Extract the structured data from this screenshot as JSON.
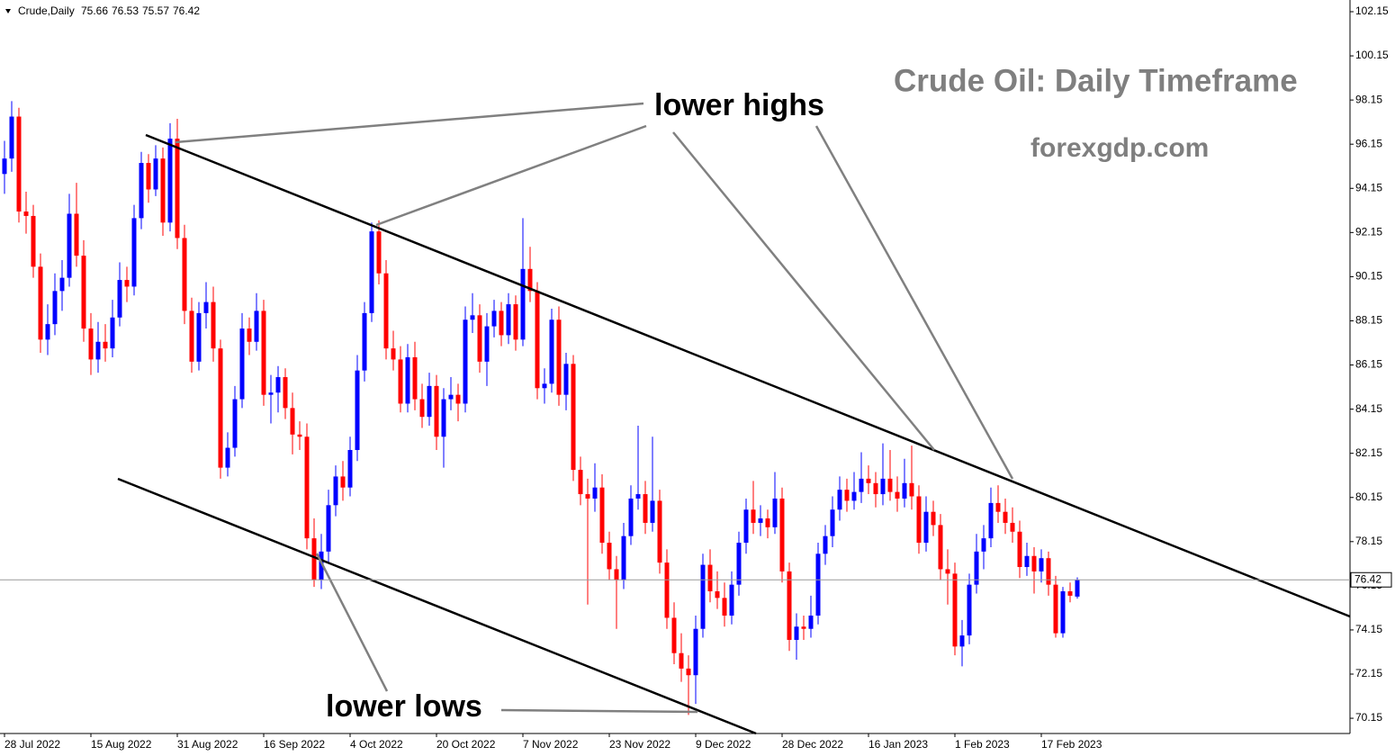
{
  "chart_data": {
    "type": "candlestick",
    "symbol": "Crude,Daily",
    "title": "Crude Oil: Daily Timeframe",
    "subtitle": "forexgdp.com",
    "annotations": [
      "lower highs",
      "lower lows"
    ],
    "up_color": "#0000ff",
    "down_color": "#ff0000",
    "ylim": [
      69.46,
      102.68
    ],
    "yticks": [
      70.15,
      72.15,
      74.15,
      76.15,
      78.15,
      80.15,
      82.15,
      84.15,
      86.15,
      88.15,
      90.15,
      92.15,
      94.15,
      96.15,
      98.15,
      100.15,
      102.15
    ],
    "categories": [
      "28 Jul 2022",
      null,
      null,
      null,
      null,
      null,
      null,
      null,
      null,
      null,
      null,
      null,
      "15 Aug 2022",
      null,
      null,
      null,
      null,
      null,
      null,
      null,
      null,
      null,
      null,
      null,
      "31 Aug 2022",
      null,
      null,
      null,
      null,
      null,
      null,
      null,
      null,
      null,
      null,
      null,
      "16 Sep 2022",
      null,
      null,
      null,
      null,
      null,
      null,
      null,
      null,
      null,
      null,
      null,
      "4 Oct 2022",
      null,
      null,
      null,
      null,
      null,
      null,
      null,
      null,
      null,
      null,
      null,
      "20 Oct 2022",
      null,
      null,
      null,
      null,
      null,
      null,
      null,
      null,
      null,
      null,
      null,
      "7 Nov 2022",
      null,
      null,
      null,
      null,
      null,
      null,
      null,
      null,
      null,
      null,
      null,
      "23 Nov 2022",
      null,
      null,
      null,
      null,
      null,
      null,
      null,
      null,
      null,
      null,
      null,
      "9 Dec 2022",
      null,
      null,
      null,
      null,
      null,
      null,
      null,
      null,
      null,
      null,
      null,
      "28 Dec 2022",
      null,
      null,
      null,
      null,
      null,
      null,
      null,
      null,
      null,
      null,
      null,
      "16 Jan 2023",
      null,
      null,
      null,
      null,
      null,
      null,
      null,
      null,
      null,
      null,
      null,
      "1 Feb 2023",
      null,
      null,
      null,
      null,
      null,
      null,
      null,
      null,
      null,
      null,
      null,
      "17 Feb 2023",
      null,
      null,
      null,
      null,
      null
    ],
    "ohlc": [
      [
        94.8,
        96.3,
        93.9,
        95.5
      ],
      [
        95.5,
        98.1,
        94.9,
        97.4
      ],
      [
        97.4,
        97.8,
        92.6,
        93.1
      ],
      [
        93.1,
        94.0,
        92.1,
        92.9
      ],
      [
        92.9,
        93.4,
        90.1,
        90.6
      ],
      [
        90.6,
        91.2,
        86.7,
        87.3
      ],
      [
        87.3,
        88.9,
        86.6,
        88.0
      ],
      [
        88.0,
        90.3,
        87.5,
        89.5
      ],
      [
        89.5,
        90.9,
        88.6,
        90.1
      ],
      [
        90.1,
        93.9,
        89.7,
        93.0
      ],
      [
        93.0,
        94.4,
        90.6,
        91.1
      ],
      [
        91.1,
        91.8,
        87.2,
        87.8
      ],
      [
        87.8,
        88.5,
        85.7,
        86.4
      ],
      [
        86.4,
        88.1,
        85.8,
        87.2
      ],
      [
        87.2,
        88.0,
        86.3,
        86.9
      ],
      [
        86.9,
        89.1,
        86.5,
        88.3
      ],
      [
        88.3,
        90.8,
        87.9,
        90.0
      ],
      [
        90.0,
        90.6,
        89.0,
        89.7
      ],
      [
        89.7,
        93.4,
        89.3,
        92.8
      ],
      [
        92.8,
        95.8,
        92.3,
        95.3
      ],
      [
        95.3,
        95.7,
        93.5,
        94.1
      ],
      [
        94.1,
        96.1,
        93.8,
        95.5
      ],
      [
        95.5,
        96.0,
        92.0,
        92.6
      ],
      [
        92.6,
        97.1,
        92.2,
        96.4
      ],
      [
        96.4,
        97.3,
        91.4,
        91.9
      ],
      [
        91.9,
        92.5,
        88.0,
        88.6
      ],
      [
        88.6,
        89.2,
        85.8,
        86.3
      ],
      [
        86.3,
        89.0,
        85.9,
        88.5
      ],
      [
        88.5,
        89.9,
        87.8,
        89.0
      ],
      [
        89.0,
        89.7,
        86.3,
        86.9
      ],
      [
        86.9,
        87.3,
        81.0,
        81.5
      ],
      [
        81.5,
        83.1,
        81.1,
        82.4
      ],
      [
        82.4,
        85.2,
        82.0,
        84.6
      ],
      [
        84.6,
        88.5,
        84.2,
        87.8
      ],
      [
        87.8,
        88.3,
        86.6,
        87.2
      ],
      [
        87.2,
        89.4,
        86.8,
        88.6
      ],
      [
        88.6,
        89.1,
        84.3,
        84.8
      ],
      [
        84.8,
        85.7,
        83.5,
        84.9
      ],
      [
        84.9,
        86.1,
        84.0,
        85.6
      ],
      [
        85.6,
        86.0,
        83.7,
        84.2
      ],
      [
        84.2,
        84.9,
        82.1,
        83.0
      ],
      [
        83.0,
        83.6,
        82.3,
        82.9
      ],
      [
        82.9,
        83.5,
        77.8,
        78.3
      ],
      [
        78.3,
        79.2,
        76.1,
        76.4
      ],
      [
        76.4,
        78.5,
        76.0,
        77.7
      ],
      [
        77.7,
        80.5,
        77.2,
        79.8
      ],
      [
        79.8,
        81.6,
        79.3,
        81.1
      ],
      [
        81.1,
        81.8,
        80.0,
        80.6
      ],
      [
        80.6,
        82.9,
        80.2,
        82.3
      ],
      [
        82.3,
        86.6,
        81.8,
        85.9
      ],
      [
        85.9,
        89.0,
        85.4,
        88.5
      ],
      [
        88.5,
        92.6,
        88.1,
        92.2
      ],
      [
        92.2,
        92.7,
        89.8,
        90.3
      ],
      [
        90.3,
        90.9,
        86.4,
        86.9
      ],
      [
        86.9,
        87.7,
        85.9,
        86.4
      ],
      [
        86.4,
        87.0,
        84.0,
        84.4
      ],
      [
        84.4,
        87.1,
        84.0,
        86.5
      ],
      [
        86.5,
        87.2,
        84.1,
        84.6
      ],
      [
        84.6,
        85.3,
        83.3,
        83.8
      ],
      [
        83.8,
        85.8,
        83.4,
        85.2
      ],
      [
        85.2,
        85.7,
        82.3,
        82.9
      ],
      [
        82.9,
        85.1,
        81.5,
        84.6
      ],
      [
        84.6,
        85.6,
        84.1,
        84.8
      ],
      [
        84.8,
        85.3,
        83.6,
        84.4
      ],
      [
        84.4,
        88.8,
        84.0,
        88.2
      ],
      [
        88.2,
        89.4,
        87.6,
        88.4
      ],
      [
        88.4,
        88.9,
        85.8,
        86.3
      ],
      [
        86.3,
        88.5,
        85.2,
        87.9
      ],
      [
        87.9,
        89.1,
        87.4,
        88.6
      ],
      [
        88.6,
        89.0,
        87.0,
        87.5
      ],
      [
        87.5,
        89.4,
        87.1,
        88.9
      ],
      [
        88.9,
        89.3,
        86.8,
        87.3
      ],
      [
        87.3,
        92.8,
        87.0,
        90.5
      ],
      [
        90.5,
        91.5,
        89.0,
        89.5
      ],
      [
        89.5,
        89.9,
        84.6,
        85.1
      ],
      [
        85.1,
        86.0,
        84.4,
        85.3
      ],
      [
        85.3,
        88.7,
        84.9,
        88.2
      ],
      [
        88.2,
        88.8,
        84.3,
        84.8
      ],
      [
        84.8,
        86.7,
        84.1,
        86.2
      ],
      [
        86.2,
        86.6,
        80.9,
        81.4
      ],
      [
        81.4,
        82.0,
        79.8,
        80.3
      ],
      [
        80.3,
        81.0,
        75.3,
        80.1
      ],
      [
        80.1,
        81.7,
        79.5,
        80.6
      ],
      [
        80.6,
        81.2,
        77.6,
        78.1
      ],
      [
        78.1,
        78.6,
        76.4,
        76.9
      ],
      [
        76.9,
        77.5,
        74.2,
        76.4
      ],
      [
        76.4,
        79.0,
        76.0,
        78.4
      ],
      [
        78.4,
        80.7,
        78.0,
        80.1
      ],
      [
        80.1,
        83.4,
        79.6,
        80.3
      ],
      [
        80.3,
        80.9,
        78.5,
        79.0
      ],
      [
        79.0,
        82.9,
        78.6,
        80.0
      ],
      [
        80.0,
        80.5,
        76.7,
        77.2
      ],
      [
        77.2,
        77.8,
        74.2,
        74.7
      ],
      [
        74.7,
        75.4,
        72.6,
        73.1
      ],
      [
        73.1,
        74.0,
        71.8,
        72.4
      ],
      [
        72.4,
        73.0,
        70.3,
        72.1
      ],
      [
        72.1,
        74.8,
        70.8,
        74.2
      ],
      [
        74.2,
        77.6,
        73.8,
        77.1
      ],
      [
        77.1,
        77.8,
        75.4,
        75.9
      ],
      [
        75.9,
        76.8,
        75.1,
        75.6
      ],
      [
        75.6,
        76.3,
        74.3,
        74.8
      ],
      [
        74.8,
        76.8,
        74.4,
        76.2
      ],
      [
        76.2,
        78.6,
        75.7,
        78.1
      ],
      [
        78.1,
        80.1,
        77.6,
        79.6
      ],
      [
        79.6,
        80.9,
        78.5,
        79.0
      ],
      [
        79.0,
        79.8,
        78.4,
        79.2
      ],
      [
        79.2,
        79.6,
        78.3,
        78.8
      ],
      [
        78.8,
        81.3,
        78.5,
        80.1
      ],
      [
        80.1,
        80.6,
        76.3,
        76.8
      ],
      [
        76.8,
        77.2,
        73.2,
        73.7
      ],
      [
        73.7,
        74.9,
        72.8,
        74.3
      ],
      [
        74.3,
        74.8,
        73.7,
        74.2
      ],
      [
        74.2,
        75.7,
        73.8,
        74.8
      ],
      [
        74.8,
        78.1,
        74.4,
        77.6
      ],
      [
        77.6,
        78.9,
        77.1,
        78.4
      ],
      [
        78.4,
        80.2,
        77.9,
        79.6
      ],
      [
        79.6,
        81.1,
        79.1,
        80.5
      ],
      [
        80.5,
        81.0,
        79.5,
        80.0
      ],
      [
        80.0,
        81.3,
        79.6,
        80.4
      ],
      [
        80.4,
        82.2,
        79.9,
        81.0
      ],
      [
        81.0,
        81.6,
        80.3,
        80.8
      ],
      [
        80.8,
        81.3,
        79.7,
        80.3
      ],
      [
        80.3,
        82.6,
        79.8,
        81.0
      ],
      [
        81.0,
        82.3,
        80.0,
        80.4
      ],
      [
        80.4,
        81.1,
        79.5,
        80.1
      ],
      [
        80.1,
        81.9,
        79.7,
        80.8
      ],
      [
        80.8,
        82.5,
        79.6,
        80.2
      ],
      [
        80.2,
        80.7,
        77.6,
        78.1
      ],
      [
        78.1,
        80.2,
        77.7,
        79.5
      ],
      [
        79.5,
        80.0,
        78.4,
        78.9
      ],
      [
        78.9,
        79.4,
        76.4,
        76.9
      ],
      [
        76.9,
        77.8,
        75.3,
        76.7
      ],
      [
        76.7,
        77.2,
        73.0,
        73.4
      ],
      [
        73.4,
        74.6,
        72.5,
        73.9
      ],
      [
        73.9,
        76.7,
        73.5,
        76.2
      ],
      [
        76.2,
        78.5,
        75.8,
        77.7
      ],
      [
        77.7,
        78.9,
        76.9,
        78.3
      ],
      [
        78.3,
        80.6,
        77.9,
        79.9
      ],
      [
        79.9,
        80.7,
        79.0,
        79.5
      ],
      [
        79.5,
        80.1,
        78.5,
        79.0
      ],
      [
        79.0,
        79.7,
        78.1,
        78.6
      ],
      [
        78.6,
        79.1,
        76.5,
        77.0
      ],
      [
        77.0,
        78.1,
        76.6,
        77.5
      ],
      [
        77.5,
        77.9,
        75.8,
        76.8
      ],
      [
        76.8,
        77.8,
        76.3,
        77.4
      ],
      [
        77.4,
        77.7,
        75.7,
        76.2
      ],
      [
        76.2,
        76.6,
        73.8,
        74.0
      ],
      [
        74.0,
        76.1,
        73.8,
        75.9
      ],
      [
        75.9,
        76.3,
        75.4,
        75.7
      ],
      [
        75.66,
        76.53,
        75.57,
        76.42
      ]
    ]
  }
}
